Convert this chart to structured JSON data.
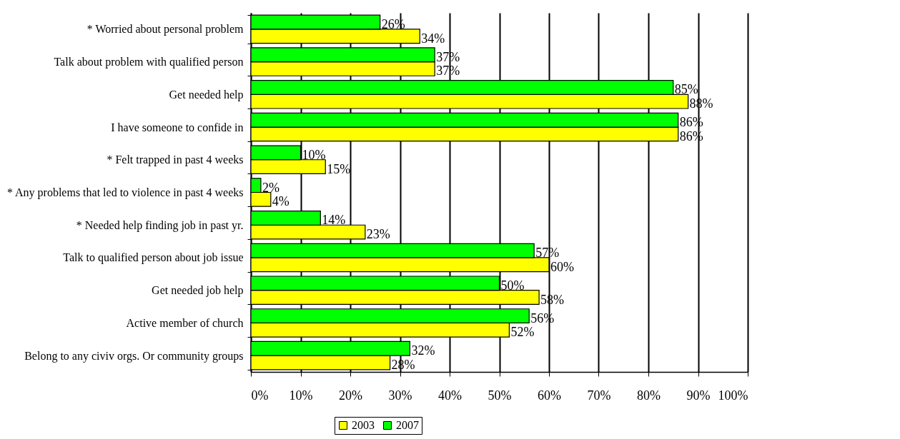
{
  "chart_data": {
    "type": "bar",
    "orientation": "horizontal",
    "categories": [
      "* Worried about personal problem",
      "Talk about problem with qualified person",
      "Get needed help",
      "I have someone to confide in",
      "* Felt trapped in past 4 weeks",
      "* Any problems that led to violence in past 4 weeks",
      "* Needed help finding job in past yr.",
      "Talk to qualified person about job issue",
      "Get needed job help",
      "Active member of church",
      "Belong to any civiv orgs. Or community groups"
    ],
    "series": [
      {
        "name": "2003",
        "color": "#ffff00",
        "values": [
          34,
          37,
          88,
          86,
          15,
          4,
          23,
          60,
          58,
          52,
          28
        ],
        "value_labels": [
          "34%",
          "37%",
          "88%",
          "86%",
          "15%",
          "4%",
          "23%",
          "60%",
          "58%",
          "52%",
          "28%"
        ]
      },
      {
        "name": "2007",
        "color": "#00ff00",
        "values": [
          26,
          37,
          85,
          86,
          10,
          2,
          14,
          57,
          50,
          56,
          32
        ],
        "value_labels": [
          "26%",
          "37%",
          "85%",
          "86%",
          "10%",
          "2%",
          "14%",
          "57%",
          "50%",
          "56%",
          "32%"
        ]
      }
    ],
    "xlim": [
      0,
      100
    ],
    "xticks": [
      {
        "value": 0,
        "label": "0%"
      },
      {
        "value": 10,
        "label": "10%"
      },
      {
        "value": 20,
        "label": "20%"
      },
      {
        "value": 30,
        "label": "30%"
      },
      {
        "value": 40,
        "label": "40%"
      },
      {
        "value": 50,
        "label": "50%"
      },
      {
        "value": 60,
        "label": "60%"
      },
      {
        "value": 70,
        "label": "70%"
      },
      {
        "value": 80,
        "label": "80%"
      },
      {
        "value": 90,
        "label": "90%"
      },
      {
        "value": 100,
        "label": "100%"
      }
    ],
    "grid": "x",
    "legend": "bottom"
  }
}
